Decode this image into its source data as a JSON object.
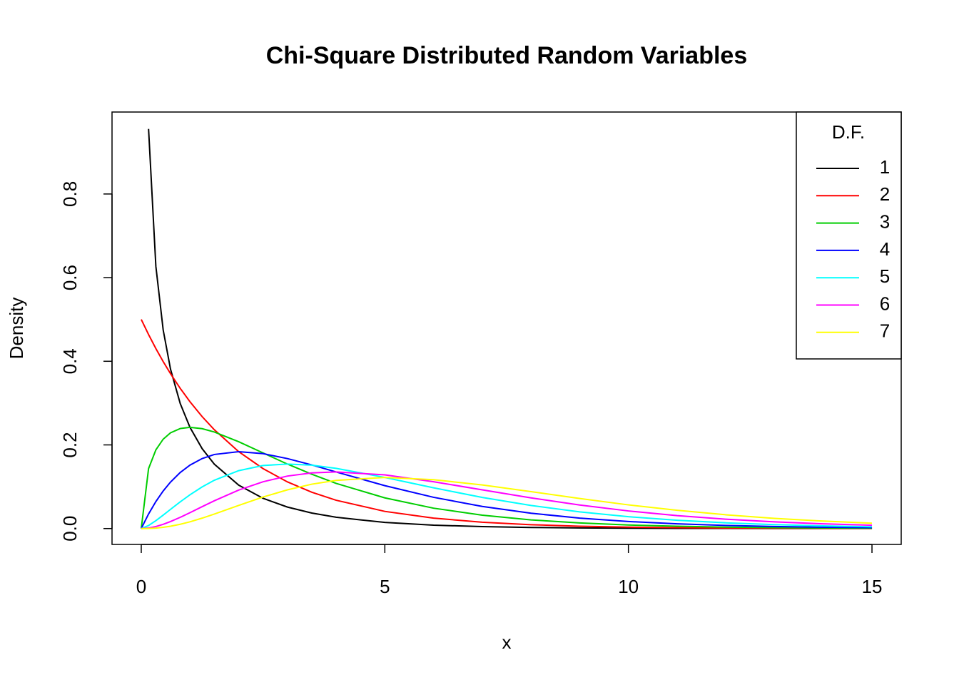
{
  "chart_data": {
    "type": "line",
    "title": "Chi-Square Distributed Random Variables",
    "x_label": "x",
    "y_label": "Density",
    "x": [
      0,
      0.15,
      0.3,
      0.45,
      0.6,
      0.8,
      1,
      1.25,
      1.5,
      2,
      2.5,
      3,
      3.5,
      4,
      5,
      6,
      7,
      8,
      9,
      10,
      11,
      12,
      13,
      14,
      15
    ],
    "series": [
      {
        "name": "1",
        "color": "#000000",
        "values": [
          null,
          0.9556,
          0.6269,
          0.4749,
          0.3815,
          0.299,
          0.242,
          0.191,
          0.1539,
          0.1038,
          0.0723,
          0.0514,
          0.0371,
          0.027,
          0.0146,
          0.0081,
          0.0046,
          0.0026,
          0.0015,
          0.0009,
          0.0005,
          0.0003,
          0.0002,
          0.0001,
          0.0001
        ]
      },
      {
        "name": "2",
        "color": "#ff0000",
        "values": [
          0.5,
          0.4639,
          0.4304,
          0.3993,
          0.3704,
          0.3352,
          0.3033,
          0.2676,
          0.2362,
          0.1839,
          0.1433,
          0.1116,
          0.0869,
          0.0677,
          0.041,
          0.0249,
          0.0151,
          0.0092,
          0.0056,
          0.0034,
          0.002,
          0.0012,
          0.0008,
          0.0005,
          0.0003
        ]
      },
      {
        "name": "3",
        "color": "#00cd00",
        "values": [
          0,
          0.1433,
          0.1881,
          0.2137,
          0.2289,
          0.2392,
          0.242,
          0.2388,
          0.2309,
          0.2076,
          0.1808,
          0.1542,
          0.1299,
          0.108,
          0.0733,
          0.0487,
          0.0319,
          0.0207,
          0.0133,
          0.0085,
          0.0054,
          0.0034,
          0.0022,
          0.0014,
          0.0009
        ]
      },
      {
        "name": "4",
        "color": "#0000ff",
        "values": [
          0,
          0.0348,
          0.0646,
          0.0898,
          0.1111,
          0.1341,
          0.1516,
          0.1673,
          0.1771,
          0.1839,
          0.1791,
          0.1673,
          0.1521,
          0.1353,
          0.1026,
          0.0747,
          0.0528,
          0.0366,
          0.025,
          0.0168,
          0.0112,
          0.0074,
          0.0049,
          0.0032,
          0.0021
        ]
      },
      {
        "name": "5",
        "color": "#00ffff",
        "values": [
          0,
          0.0072,
          0.0188,
          0.0321,
          0.0458,
          0.0638,
          0.0807,
          0.0995,
          0.1155,
          0.1384,
          0.1507,
          0.1542,
          0.1516,
          0.144,
          0.1222,
          0.0974,
          0.0744,
          0.0552,
          0.0399,
          0.0283,
          0.0198,
          0.0137,
          0.0094,
          0.0064,
          0.0043
        ]
      },
      {
        "name": "6",
        "color": "#ff00ff",
        "values": [
          0,
          0.0013,
          0.0048,
          0.0101,
          0.0167,
          0.0268,
          0.0379,
          0.0523,
          0.0664,
          0.092,
          0.1119,
          0.1255,
          0.1331,
          0.1353,
          0.1283,
          0.112,
          0.0925,
          0.0733,
          0.0562,
          0.0421,
          0.0309,
          0.0223,
          0.0159,
          0.0112,
          0.0078
        ]
      },
      {
        "name": "7",
        "color": "#ffff00",
        "values": [
          0,
          0.0002,
          0.0011,
          0.0029,
          0.0055,
          0.0102,
          0.0161,
          0.0249,
          0.0347,
          0.0554,
          0.0754,
          0.0925,
          0.1061,
          0.1152,
          0.1222,
          0.1169,
          0.1042,
          0.0883,
          0.0718,
          0.0566,
          0.0436,
          0.0329,
          0.0243,
          0.0178,
          0.0128
        ]
      }
    ],
    "legend_title": "D.F.",
    "legend_position": "top-right",
    "xlim": [
      -0.6,
      15.6
    ],
    "xticks": [
      0,
      5,
      10,
      15
    ],
    "ylim": [
      -0.038,
      0.996
    ],
    "yticks": [
      {
        "value": 0,
        "label": "0.0"
      },
      0.2,
      0.4,
      0.6,
      0.8
    ]
  }
}
